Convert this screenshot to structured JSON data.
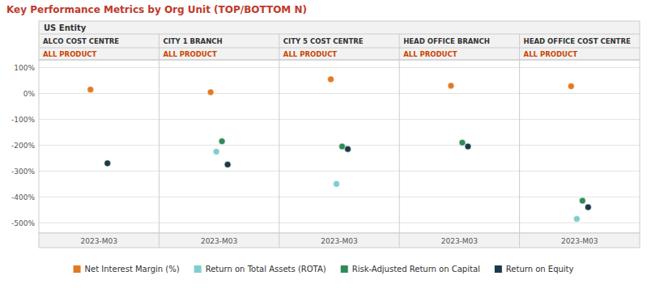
{
  "chart_data": {
    "type": "dot",
    "title": "Key Performance Metrics by Org Unit (TOP/BOTTOM N)",
    "header": "US Entity",
    "subheader": "ALL PRODUCT",
    "xlabel": "2023-M03",
    "categories": [
      "ALCO COST CENTRE",
      "CITY 1 BRANCH",
      "CITY 5 COST CENTRE",
      "HEAD OFFICE BRANCH",
      "HEAD OFFICE COST CENTRE"
    ],
    "series": [
      {
        "name": "Net Interest Margin (%)",
        "color": "#E07B25",
        "values": [
          15,
          5,
          55,
          30,
          28
        ]
      },
      {
        "name": "Return on Total Assets (ROTA)",
        "color": "#7ECECE",
        "values": [
          null,
          -225,
          -350,
          null,
          -485
        ]
      },
      {
        "name": "Risk-Adjusted Return on Capital",
        "color": "#2E8B57",
        "values": [
          null,
          -185,
          -205,
          -190,
          -415
        ]
      },
      {
        "name": "Return on Equity",
        "color": "#1A3A4A",
        "values": [
          -270,
          -275,
          -215,
          -205,
          -440
        ]
      }
    ],
    "ylim": [
      -540,
      130
    ],
    "yticks": [
      {
        "value": 100,
        "label": "100%"
      },
      {
        "value": 0,
        "label": "0%"
      },
      {
        "value": -100,
        "label": "-100%"
      },
      {
        "value": -200,
        "label": "-200%"
      },
      {
        "value": -300,
        "label": "-300%"
      },
      {
        "value": -400,
        "label": "-400%"
      },
      {
        "value": -500,
        "label": "-500%"
      }
    ],
    "grid": true,
    "legend": "bottom"
  }
}
